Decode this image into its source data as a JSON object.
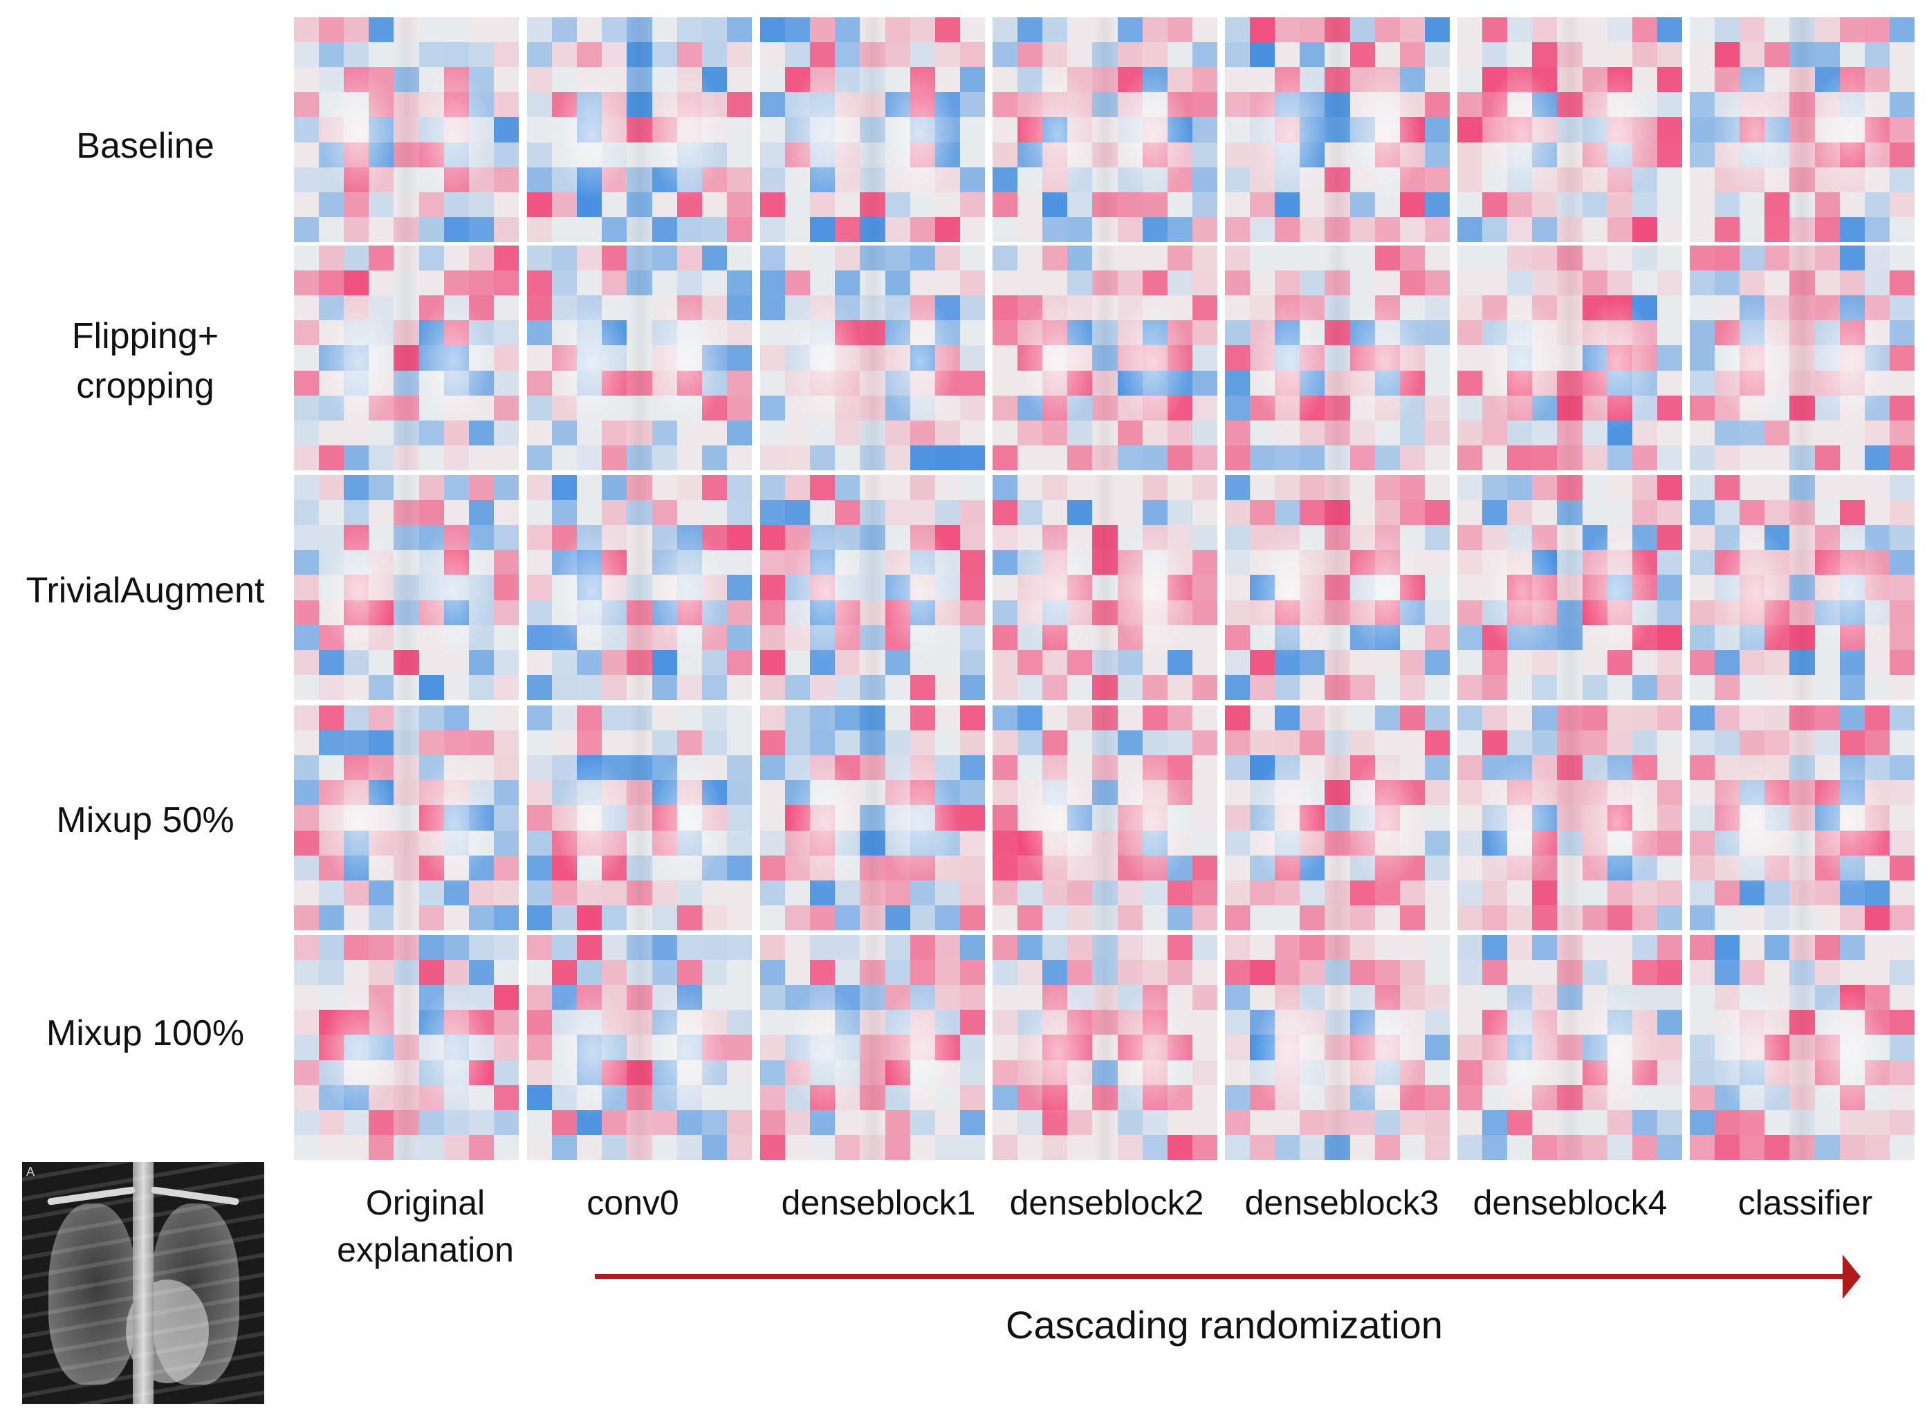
{
  "rows": [
    {
      "label": "Baseline"
    },
    {
      "label": "Flipping+\ncropping"
    },
    {
      "label": "TrivialAugment"
    },
    {
      "label": "Mixup 50%"
    },
    {
      "label": "Mixup 100%"
    }
  ],
  "columns": [
    {
      "label": "Original\nexplanation"
    },
    {
      "label": "conv0"
    },
    {
      "label": "denseblock1"
    },
    {
      "label": "denseblock2"
    },
    {
      "label": "denseblock3"
    },
    {
      "label": "denseblock4"
    },
    {
      "label": "classifier"
    }
  ],
  "cascade": {
    "label": "Cascading randomization"
  },
  "xray": {
    "marker": "A"
  },
  "colors": {
    "positive": "#f0245f",
    "negative": "#1e78dc",
    "arrow": "#b11a1a"
  }
}
